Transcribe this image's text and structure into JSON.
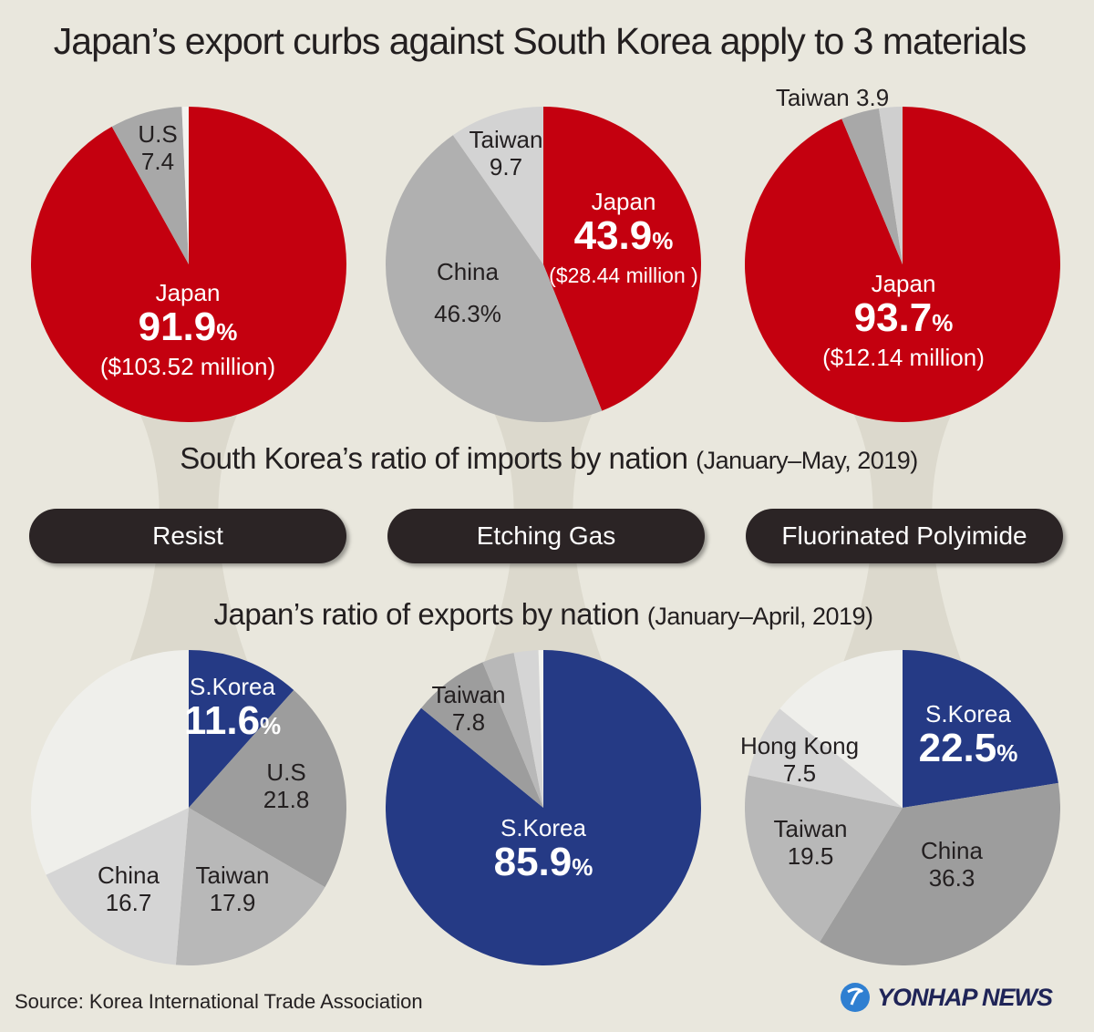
{
  "title": "Japan’s export curbs against South Korea apply to 3 materials",
  "imports_heading": {
    "main": "South Korea’s ratio of imports by nation",
    "period": "(January–May, 2019)"
  },
  "exports_heading": {
    "main": "Japan’s ratio of exports by nation",
    "period": "(January–April, 2019)"
  },
  "materials": [
    "Resist",
    "Etching Gas",
    "Fluorinated Polyimide"
  ],
  "source": "Source: Korea International Trade Association",
  "logo": "YONHAP NEWS",
  "colors": {
    "japan": "#c4000f",
    "skorea": "#253a85",
    "dark_gray": "#9d9d9d",
    "mid_gray": "#b3b3b3",
    "light_gray": "#cfcfcf",
    "pale": "#efefeb",
    "background": "#e9e7dd"
  },
  "chart_data": [
    {
      "type": "pie",
      "group": "imports",
      "material": "Resist",
      "slices": [
        {
          "name": "Japan",
          "value": 91.9,
          "label": "91.9",
          "unit": "%",
          "amount": "($103.52 million)",
          "color": "#c4000f"
        },
        {
          "name": "U.S",
          "value": 7.4,
          "label": "7.4",
          "color": "#a8a8a8"
        },
        {
          "name": "",
          "value": 0.7,
          "color": "#f4f4f0"
        }
      ]
    },
    {
      "type": "pie",
      "group": "imports",
      "material": "Etching Gas",
      "slices": [
        {
          "name": "Japan",
          "value": 43.9,
          "label": "43.9",
          "unit": "%",
          "amount": "($28.44 million )",
          "color": "#c4000f"
        },
        {
          "name": "China",
          "value": 46.3,
          "label": "46.3%",
          "color": "#b0b0b0"
        },
        {
          "name": "Taiwan",
          "value": 9.7,
          "label": "9.7",
          "color": "#d3d3d3"
        }
      ]
    },
    {
      "type": "pie",
      "group": "imports",
      "material": "Fluorinated Polyimide",
      "slices": [
        {
          "name": "Japan",
          "value": 93.7,
          "label": "93.7",
          "unit": "%",
          "amount": "($12.14 million)",
          "color": "#c4000f"
        },
        {
          "name": "Taiwan",
          "value": 3.9,
          "label": "3.9",
          "color": "#a8a8a8"
        },
        {
          "name": "",
          "value": 2.4,
          "color": "#cfcfcf"
        }
      ]
    },
    {
      "type": "pie",
      "group": "exports",
      "material": "Resist",
      "slices": [
        {
          "name": "S.Korea",
          "value": 11.6,
          "label": "11.6",
          "unit": "%",
          "color": "#253a85"
        },
        {
          "name": "U.S",
          "value": 21.8,
          "label": "21.8",
          "color": "#9d9d9d"
        },
        {
          "name": "Taiwan",
          "value": 17.9,
          "label": "17.9",
          "color": "#b8b8b8"
        },
        {
          "name": "China",
          "value": 16.7,
          "label": "16.7",
          "color": "#d5d5d5"
        },
        {
          "name": "",
          "value": 32.0,
          "color": "#efefeb"
        }
      ]
    },
    {
      "type": "pie",
      "group": "exports",
      "material": "Etching Gas",
      "slices": [
        {
          "name": "S.Korea",
          "value": 85.9,
          "label": "85.9",
          "unit": "%",
          "color": "#253a85"
        },
        {
          "name": "Taiwan",
          "value": 7.8,
          "label": "7.8",
          "color": "#9d9d9d"
        },
        {
          "name": "",
          "value": 3.3,
          "color": "#b8b8b8"
        },
        {
          "name": "",
          "value": 2.5,
          "color": "#d5d5d5"
        },
        {
          "name": "",
          "value": 0.5,
          "color": "#f4f4f0"
        }
      ]
    },
    {
      "type": "pie",
      "group": "exports",
      "material": "Fluorinated Polyimide",
      "slices": [
        {
          "name": "S.Korea",
          "value": 22.5,
          "label": "22.5",
          "unit": "%",
          "color": "#253a85"
        },
        {
          "name": "China",
          "value": 36.3,
          "label": "36.3",
          "color": "#9d9d9d"
        },
        {
          "name": "Taiwan",
          "value": 19.5,
          "label": "19.5",
          "color": "#b8b8b8"
        },
        {
          "name": "Hong Kong",
          "value": 7.5,
          "label": "7.5",
          "color": "#d5d5d5"
        },
        {
          "name": "",
          "value": 14.2,
          "color": "#efefeb"
        }
      ]
    }
  ]
}
